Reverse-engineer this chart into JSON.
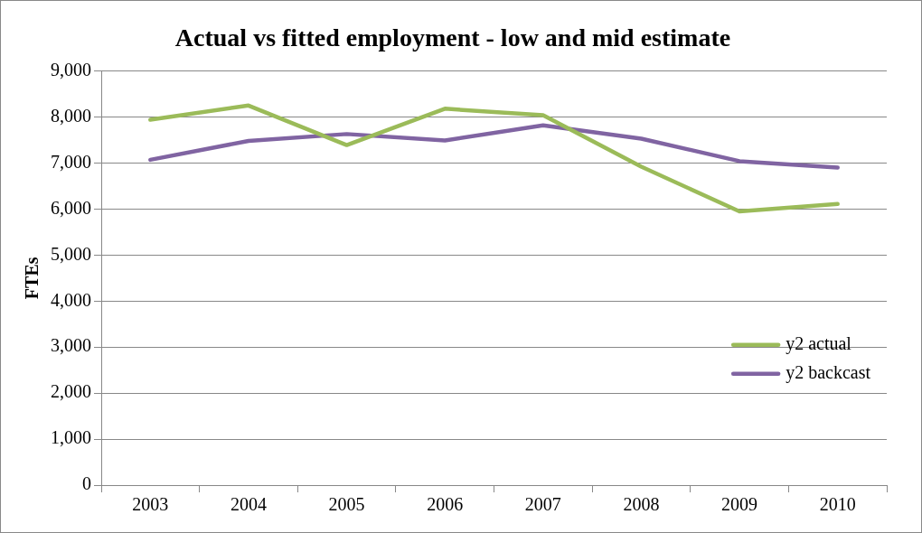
{
  "chart_data": {
    "type": "line",
    "title": "Actual vs fitted employment - low and mid estimate",
    "ylabel": "FTEs",
    "categories": [
      "2003",
      "2004",
      "2005",
      "2006",
      "2007",
      "2008",
      "2009",
      "2010"
    ],
    "series": [
      {
        "name": "y2 actual",
        "color": "#9bbb59",
        "values": [
          7940,
          8250,
          7390,
          8180,
          8040,
          6920,
          5950,
          6110
        ]
      },
      {
        "name": "y2 backcast",
        "color": "#8064a2",
        "values": [
          7070,
          7480,
          7630,
          7490,
          7820,
          7530,
          7040,
          6900
        ]
      }
    ],
    "ylim": [
      0,
      9000
    ],
    "yticks": [
      {
        "value": 0,
        "label": "0"
      },
      {
        "value": 1000,
        "label": "1,000"
      },
      {
        "value": 2000,
        "label": "2,000"
      },
      {
        "value": 3000,
        "label": "3,000"
      },
      {
        "value": 4000,
        "label": "4,000"
      },
      {
        "value": 5000,
        "label": "5,000"
      },
      {
        "value": 6000,
        "label": "6,000"
      },
      {
        "value": 7000,
        "label": "7,000"
      },
      {
        "value": 8000,
        "label": "8,000"
      },
      {
        "value": 9000,
        "label": "9,000"
      }
    ],
    "grid": "y",
    "legend": "right",
    "marker": "none",
    "line_style": "solid"
  }
}
